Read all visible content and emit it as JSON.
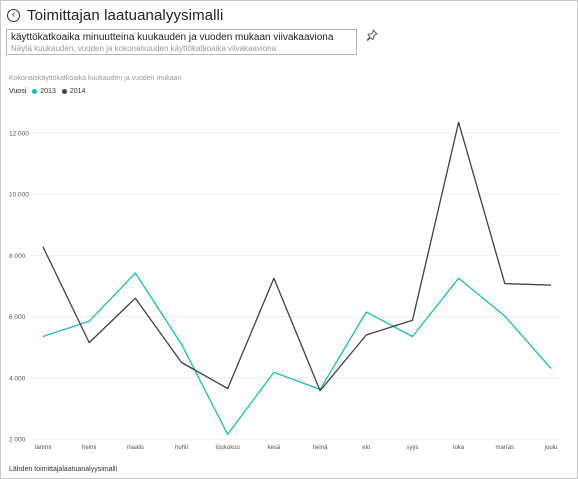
{
  "header": {
    "title": "Toimittajan laatuanalyysimalli",
    "back_icon": "back-arrow-icon"
  },
  "qa": {
    "input_value": "käyttökatkoaika minuutteina kuukauden ja vuoden mukaan viivakaaviona",
    "restatement": "Näytä kuukauden, vuoden ja kokonaisuuden käyttökatkoaika viivakaaviona",
    "pin_icon": "pin-icon"
  },
  "footer": {
    "source": "Lähden toimittajalaatuanalyysimalli"
  },
  "chart_data": {
    "type": "line",
    "title": "Kokonaiskäyttökatkoaika kuukauden ja vuoden mukaan",
    "legend_title": "Vuosi",
    "legend_position": "top-left",
    "categories": [
      "tammi",
      "helmi",
      "maalis",
      "huhti",
      "toukokuu",
      "kesä",
      "heinä",
      "elo",
      "syys",
      "loka",
      "marras",
      "joulu"
    ],
    "series": [
      {
        "name": "2013",
        "color": "#1abfb0",
        "values": [
          5350,
          5850,
          7420,
          5100,
          2150,
          4180,
          3620,
          6150,
          5350,
          7250,
          6020,
          4300
        ]
      },
      {
        "name": "2014",
        "color": "#3d4245",
        "values": [
          8280,
          5150,
          6600,
          4500,
          3650,
          7250,
          3580,
          5400,
          5880,
          12350,
          7080,
          7030
        ]
      }
    ],
    "ylim": [
      2000,
      12000
    ],
    "yticks": [
      {
        "value": 2000,
        "label": "2 000"
      },
      {
        "value": 4000,
        "label": "4 000"
      },
      {
        "value": 6000,
        "label": "6 000"
      },
      {
        "value": 8000,
        "label": "8 000"
      },
      {
        "value": 10000,
        "label": "10 000"
      },
      {
        "value": 12000,
        "label": "12 000"
      }
    ],
    "grid": true
  }
}
